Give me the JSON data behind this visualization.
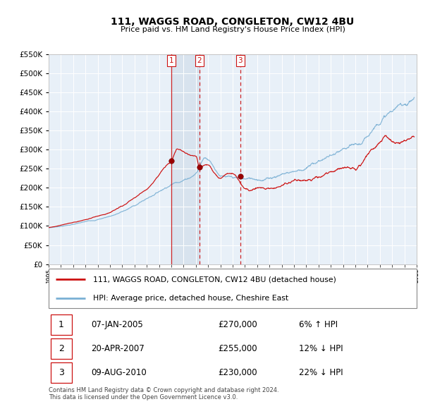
{
  "title": "111, WAGGS ROAD, CONGLETON, CW12 4BU",
  "subtitle": "Price paid vs. HM Land Registry's House Price Index (HPI)",
  "hpi_color": "#7ab0d4",
  "price_color": "#cc1111",
  "plot_bg_color": "#e8f0f8",
  "ylim": [
    0,
    550000
  ],
  "yticks": [
    0,
    50000,
    100000,
    150000,
    200000,
    250000,
    300000,
    350000,
    400000,
    450000,
    500000,
    550000
  ],
  "legend_entries": [
    "111, WAGGS ROAD, CONGLETON, CW12 4BU (detached house)",
    "HPI: Average price, detached house, Cheshire East"
  ],
  "sale_events": [
    {
      "num": 1,
      "date": "07-JAN-2005",
      "price": "£270,000",
      "pct": "6%",
      "dir": "↑",
      "year": 2005.02
    },
    {
      "num": 2,
      "date": "20-APR-2007",
      "price": "£255,000",
      "pct": "12%",
      "dir": "↓",
      "year": 2007.3
    },
    {
      "num": 3,
      "date": "09-AUG-2010",
      "price": "£230,000",
      "pct": "22%",
      "dir": "↓",
      "year": 2010.61
    }
  ],
  "sale_marker_values": [
    270000,
    255000,
    230000
  ],
  "footer": "Contains HM Land Registry data © Crown copyright and database right 2024.\nThis data is licensed under the Open Government Licence v3.0.",
  "xmin": 1995,
  "xmax": 2025
}
